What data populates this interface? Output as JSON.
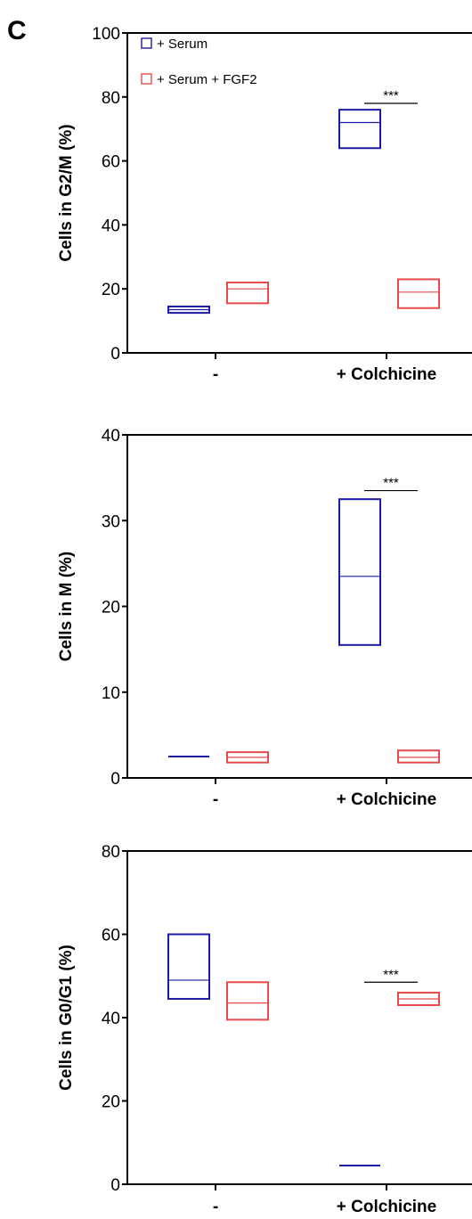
{
  "panel_label": "C",
  "colors": {
    "serum": "#1a1aa6",
    "serum_fgf2": "#e84a4a",
    "axis": "#000000"
  },
  "chart_data": [
    {
      "type": "box",
      "ylabel": "Cells in G2/M (%)",
      "ylim": [
        0,
        100
      ],
      "yticks": [
        0,
        20,
        40,
        60,
        80,
        100
      ],
      "categories": [
        "-",
        "+ Colchicine"
      ],
      "legend": {
        "placement": "top-left",
        "entries": [
          "+ Serum",
          "+ Serum + FGF2"
        ]
      },
      "series": [
        {
          "name": "+ Serum",
          "boxes": [
            {
              "min": 12.5,
              "median": 13.5,
              "max": 14.5
            },
            {
              "min": 64,
              "median": 72,
              "max": 76
            }
          ]
        },
        {
          "name": "+ Serum + FGF2",
          "boxes": [
            {
              "min": 15.5,
              "median": 20,
              "max": 22
            },
            {
              "min": 14,
              "median": 19,
              "max": 23
            }
          ]
        }
      ],
      "significance": [
        {
          "category": 1,
          "y": 78,
          "label": "***"
        }
      ]
    },
    {
      "type": "box",
      "ylabel": "Cells in M (%)",
      "ylim": [
        0,
        40
      ],
      "yticks": [
        0,
        10,
        20,
        30,
        40
      ],
      "categories": [
        "-",
        "+ Colchicine"
      ],
      "series": [
        {
          "name": "+ Serum",
          "boxes": [
            {
              "min": 2.5,
              "median": 2.5,
              "max": 2.5
            },
            {
              "min": 15.5,
              "median": 23.5,
              "max": 32.5
            }
          ]
        },
        {
          "name": "+ Serum + FGF2",
          "boxes": [
            {
              "min": 1.8,
              "median": 2.4,
              "max": 3.0
            },
            {
              "min": 1.8,
              "median": 2.4,
              "max": 3.2
            }
          ]
        }
      ],
      "significance": [
        {
          "category": 1,
          "y": 33.5,
          "label": "***"
        }
      ]
    },
    {
      "type": "box",
      "ylabel": "Cells in G0/G1 (%)",
      "ylim": [
        0,
        80
      ],
      "yticks": [
        0,
        20,
        40,
        60,
        80
      ],
      "categories": [
        "-",
        "+ Colchicine"
      ],
      "series": [
        {
          "name": "+ Serum",
          "boxes": [
            {
              "min": 44.5,
              "median": 49,
              "max": 60
            },
            {
              "min": 4.5,
              "median": 4.5,
              "max": 4.5
            }
          ]
        },
        {
          "name": "+ Serum + FGF2",
          "boxes": [
            {
              "min": 39.5,
              "median": 43.5,
              "max": 48.5
            },
            {
              "min": 43,
              "median": 44.5,
              "max": 46
            }
          ]
        }
      ],
      "significance": [
        {
          "category": 1,
          "y": 48.5,
          "label": "***"
        }
      ]
    }
  ]
}
